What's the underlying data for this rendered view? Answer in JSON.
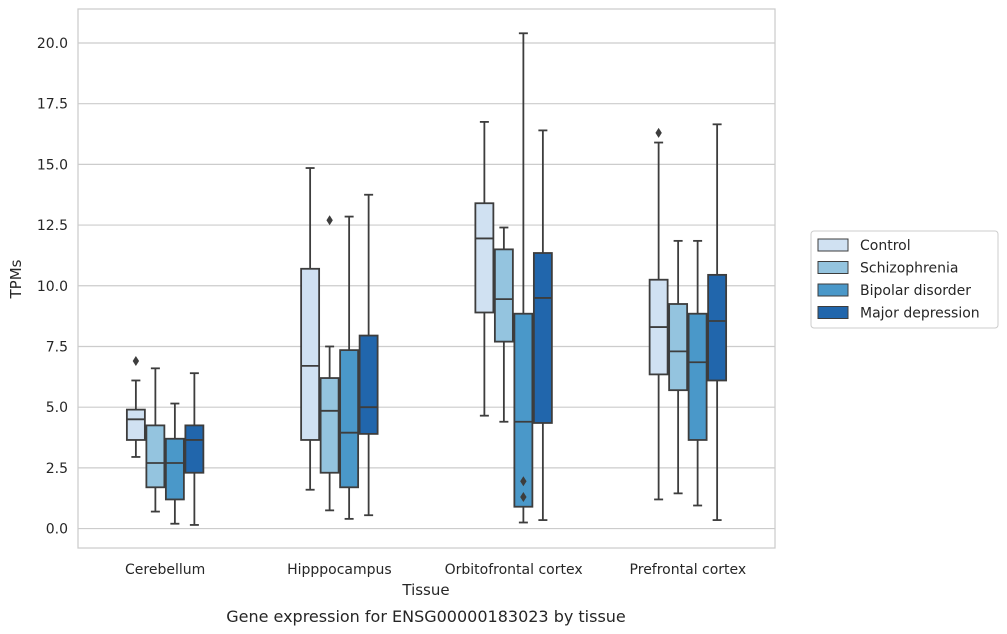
{
  "caption": "Gene expression for ENSG00000183023 by tissue",
  "chart_data": {
    "type": "box",
    "xlabel": "Tissue",
    "ylabel": "TPMs",
    "ylim": [
      -0.8,
      21.4
    ],
    "yticks": [
      0.0,
      2.5,
      5.0,
      7.5,
      10.0,
      12.5,
      15.0,
      17.5,
      20.0
    ],
    "ytick_labels": [
      "0.0",
      "2.5",
      "5.0",
      "7.5",
      "10.0",
      "12.5",
      "15.0",
      "17.5",
      "20.0"
    ],
    "grid": true,
    "legend_position": "right",
    "categories": [
      "Cerebellum",
      "Hipppocampus",
      "Orbitofrontal cortex",
      "Prefrontal cortex"
    ],
    "series": [
      {
        "name": "Control",
        "color": "#d0e1f2",
        "boxes": [
          {
            "whisker_low": 2.95,
            "q1": 3.65,
            "median": 4.5,
            "q3": 4.9,
            "whisker_high": 6.1,
            "outliers": [
              6.9
            ]
          },
          {
            "whisker_low": 1.6,
            "q1": 3.65,
            "median": 6.7,
            "q3": 10.7,
            "whisker_high": 14.85,
            "outliers": []
          },
          {
            "whisker_low": 4.65,
            "q1": 8.9,
            "median": 11.95,
            "q3": 13.4,
            "whisker_high": 16.75,
            "outliers": []
          },
          {
            "whisker_low": 1.2,
            "q1": 6.35,
            "median": 8.3,
            "q3": 10.25,
            "whisker_high": 15.9,
            "outliers": [
              16.3
            ]
          }
        ]
      },
      {
        "name": "Schizophrenia",
        "color": "#94c4df",
        "boxes": [
          {
            "whisker_low": 0.7,
            "q1": 1.7,
            "median": 2.7,
            "q3": 4.25,
            "whisker_high": 6.6,
            "outliers": []
          },
          {
            "whisker_low": 0.75,
            "q1": 2.3,
            "median": 4.85,
            "q3": 6.2,
            "whisker_high": 7.5,
            "outliers": [
              12.7
            ]
          },
          {
            "whisker_low": 4.4,
            "q1": 7.7,
            "median": 9.45,
            "q3": 11.5,
            "whisker_high": 12.4,
            "outliers": []
          },
          {
            "whisker_low": 1.45,
            "q1": 5.7,
            "median": 7.3,
            "q3": 9.25,
            "whisker_high": 11.85,
            "outliers": []
          }
        ]
      },
      {
        "name": "Bipolar disorder",
        "color": "#4a98c9",
        "boxes": [
          {
            "whisker_low": 0.2,
            "q1": 1.2,
            "median": 2.7,
            "q3": 3.7,
            "whisker_high": 5.15,
            "outliers": []
          },
          {
            "whisker_low": 0.4,
            "q1": 1.7,
            "median": 3.95,
            "q3": 7.35,
            "whisker_high": 12.85,
            "outliers": []
          },
          {
            "whisker_low": 0.25,
            "q1": 0.9,
            "median": 4.4,
            "q3": 8.85,
            "whisker_high": 20.4,
            "outliers": [
              1.95,
              1.3
            ]
          },
          {
            "whisker_low": 0.95,
            "q1": 3.65,
            "median": 6.85,
            "q3": 8.85,
            "whisker_high": 11.85,
            "outliers": []
          }
        ]
      },
      {
        "name": "Major depression",
        "color": "#2166ac",
        "boxes": [
          {
            "whisker_low": 0.15,
            "q1": 2.3,
            "median": 3.65,
            "q3": 4.25,
            "whisker_high": 6.4,
            "outliers": []
          },
          {
            "whisker_low": 0.55,
            "q1": 3.9,
            "median": 5.0,
            "q3": 7.95,
            "whisker_high": 13.75,
            "outliers": []
          },
          {
            "whisker_low": 0.35,
            "q1": 4.35,
            "median": 9.5,
            "q3": 11.35,
            "whisker_high": 16.4,
            "outliers": []
          },
          {
            "whisker_low": 0.35,
            "q1": 6.1,
            "median": 8.55,
            "q3": 10.45,
            "whisker_high": 16.65,
            "outliers": []
          }
        ]
      }
    ]
  }
}
